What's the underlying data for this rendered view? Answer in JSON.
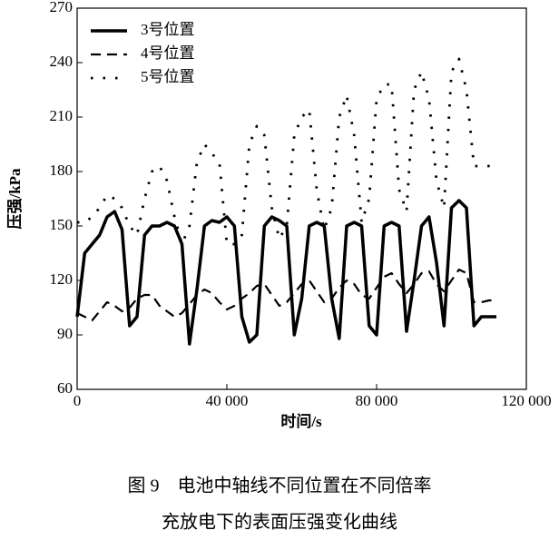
{
  "chart_data": {
    "type": "line",
    "x_label": "时间/s",
    "y_label": "压强/kPa",
    "x": [
      0,
      2000,
      4000,
      6000,
      8000,
      10000,
      12000,
      14000,
      16000,
      18000,
      20000,
      22000,
      24000,
      26000,
      28000,
      30000,
      32000,
      34000,
      36000,
      38000,
      40000,
      42000,
      44000,
      46000,
      48000,
      50000,
      52000,
      54000,
      56000,
      58000,
      60000,
      62000,
      64000,
      66000,
      68000,
      70000,
      72000,
      74000,
      76000,
      78000,
      80000,
      82000,
      84000,
      86000,
      88000,
      90000,
      92000,
      94000,
      96000,
      98000,
      100000,
      102000,
      104000,
      106000,
      108000,
      110000,
      112000
    ],
    "series": [
      {
        "name": "3号位置",
        "color": "#000000",
        "style": "solid",
        "values": [
          100,
          135,
          140,
          145,
          155,
          158,
          148,
          95,
          100,
          145,
          150,
          150,
          152,
          150,
          140,
          85,
          115,
          150,
          153,
          152,
          155,
          150,
          100,
          86,
          90,
          150,
          155,
          153,
          150,
          90,
          110,
          150,
          152,
          150,
          110,
          88,
          150,
          152,
          150,
          95,
          90,
          150,
          152,
          150,
          92,
          120,
          150,
          155,
          130,
          95,
          160,
          164,
          160,
          95,
          100,
          100,
          100
        ]
      },
      {
        "name": "4号位置",
        "color": "#000000",
        "style": "dashed",
        "values": [
          102,
          100,
          98,
          103,
          108,
          106,
          103,
          105,
          110,
          112,
          112,
          106,
          103,
          100,
          102,
          107,
          112,
          115,
          113,
          108,
          104,
          106,
          110,
          113,
          117,
          118,
          112,
          106,
          108,
          113,
          118,
          120,
          114,
          108,
          110,
          116,
          120,
          118,
          112,
          110,
          116,
          122,
          124,
          118,
          113,
          118,
          124,
          125,
          118,
          114,
          120,
          126,
          124,
          108,
          108,
          109,
          109
        ]
      },
      {
        "name": "5号位置",
        "color": "#000000",
        "style": "dotted",
        "values": [
          152,
          152,
          155,
          160,
          167,
          165,
          160,
          150,
          145,
          165,
          180,
          183,
          175,
          155,
          140,
          150,
          185,
          195,
          190,
          185,
          140,
          140,
          145,
          195,
          205,
          200,
          160,
          143,
          150,
          200,
          210,
          214,
          170,
          148,
          160,
          210,
          222,
          200,
          152,
          165,
          220,
          228,
          228,
          170,
          158,
          225,
          235,
          220,
          175,
          160,
          235,
          242,
          225,
          183,
          183,
          183,
          182
        ]
      }
    ],
    "xlim": [
      0,
      120000
    ],
    "ylim": [
      60,
      270
    ],
    "xticks": [
      0,
      {
        "value": 40000,
        "label": "40 000"
      },
      {
        "value": 80000,
        "label": "80 000"
      },
      {
        "value": 120000,
        "label": "120 000"
      }
    ],
    "yticks": [
      60,
      90,
      120,
      150,
      180,
      210,
      240,
      270
    ],
    "legend": "upper left"
  },
  "caption": [
    "图 9　电池中轴线不同位置在不同倍率",
    "充放电下的表面压强变化曲线"
  ]
}
